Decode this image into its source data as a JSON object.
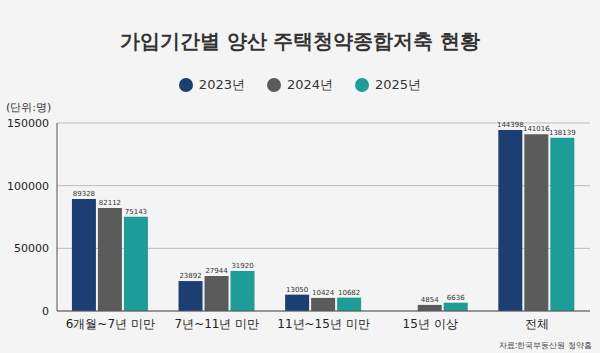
{
  "chart_data": {
    "type": "bar",
    "title": "가입기간별 양산 주택청약종합저축 현황",
    "y_label": "(단위:명)",
    "source": "자료:한국부동산원 청약홈",
    "categories": [
      "6개월~7년 미만",
      "7년~11년 미만",
      "11년~15년 미만",
      "15년 이상",
      "전체"
    ],
    "series": [
      {
        "name": "2023년",
        "color": "#1c3f73",
        "values": [
          89328,
          23892,
          13050,
          null,
          144398
        ]
      },
      {
        "name": "2024년",
        "color": "#5b5b5b",
        "values": [
          82112,
          27944,
          10424,
          4854,
          141016
        ]
      },
      {
        "name": "2025년",
        "color": "#1e9c98",
        "values": [
          75143,
          31920,
          10682,
          6636,
          138139
        ]
      }
    ],
    "ylim": [
      0,
      150000
    ],
    "yticks": [
      0,
      50000,
      100000,
      150000
    ],
    "grid": true,
    "data_labels": true,
    "legend": "top"
  }
}
